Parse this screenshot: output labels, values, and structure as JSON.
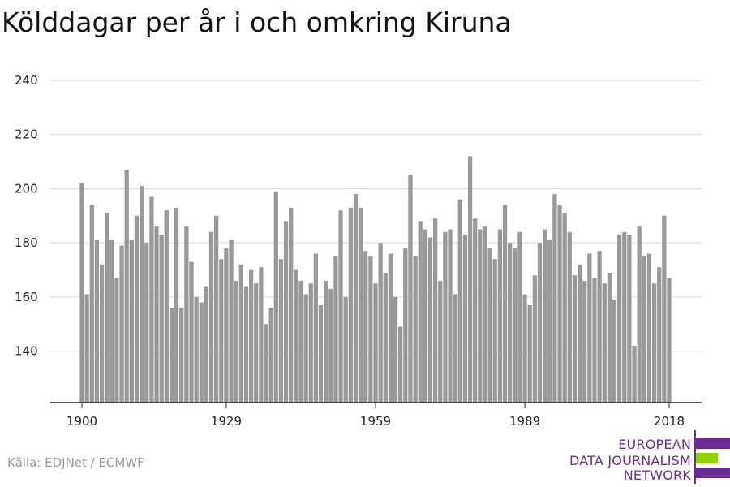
{
  "title": "Kölddagar per år i och omkring Kiruna",
  "source": "Källa: EDJNet / ECMWF",
  "logo": {
    "lines": [
      "EUROPEAN",
      "DATA JOURNALISM",
      "NETWORK"
    ],
    "colors": {
      "purple": "#6b2c91",
      "green": "#8fd400"
    }
  },
  "chart_data": {
    "type": "bar",
    "title": "Kölddagar per år i och omkring Kiruna",
    "xlabel": "",
    "ylabel": "",
    "ylim": [
      121,
      240
    ],
    "yticks": [
      140,
      160,
      180,
      200,
      220,
      240
    ],
    "xticks": [
      1900,
      1929,
      1959,
      1989,
      2018
    ],
    "grid": true,
    "bar_color": "#999999",
    "x": [
      1900,
      1901,
      1902,
      1903,
      1904,
      1905,
      1906,
      1907,
      1908,
      1909,
      1910,
      1911,
      1912,
      1913,
      1914,
      1915,
      1916,
      1917,
      1918,
      1919,
      1920,
      1921,
      1922,
      1923,
      1924,
      1925,
      1926,
      1927,
      1928,
      1929,
      1930,
      1931,
      1932,
      1933,
      1934,
      1935,
      1936,
      1937,
      1938,
      1939,
      1940,
      1941,
      1942,
      1943,
      1944,
      1945,
      1946,
      1947,
      1948,
      1949,
      1950,
      1951,
      1952,
      1953,
      1954,
      1955,
      1956,
      1957,
      1958,
      1959,
      1960,
      1961,
      1962,
      1963,
      1964,
      1965,
      1966,
      1967,
      1968,
      1969,
      1970,
      1971,
      1972,
      1973,
      1974,
      1975,
      1976,
      1977,
      1978,
      1979,
      1980,
      1981,
      1982,
      1983,
      1984,
      1985,
      1986,
      1987,
      1988,
      1989,
      1990,
      1991,
      1992,
      1993,
      1994,
      1995,
      1996,
      1997,
      1998,
      1999,
      2000,
      2001,
      2002,
      2003,
      2004,
      2005,
      2006,
      2007,
      2008,
      2009,
      2010,
      2011,
      2012,
      2013,
      2014,
      2015,
      2016,
      2017,
      2018
    ],
    "values": [
      202,
      161,
      194,
      181,
      172,
      191,
      181,
      167,
      179,
      207,
      181,
      190,
      201,
      180,
      197,
      186,
      183,
      192,
      156,
      193,
      156,
      186,
      173,
      160,
      158,
      164,
      184,
      190,
      174,
      178,
      181,
      166,
      172,
      164,
      170,
      165,
      171,
      150,
      156,
      199,
      174,
      188,
      193,
      170,
      166,
      161,
      165,
      176,
      157,
      166,
      163,
      175,
      192,
      160,
      193,
      198,
      193,
      177,
      175,
      165,
      180,
      169,
      176,
      160,
      149,
      178,
      205,
      175,
      188,
      185,
      182,
      189,
      166,
      184,
      185,
      161,
      196,
      183,
      212,
      189,
      185,
      186,
      178,
      174,
      185,
      194,
      180,
      178,
      184,
      161,
      157,
      168,
      180,
      185,
      181,
      198,
      194,
      191,
      184,
      168,
      172,
      166,
      176,
      167,
      177,
      165,
      169,
      159,
      183,
      184,
      183,
      142,
      186,
      175,
      176,
      165,
      171,
      190,
      167
    ]
  }
}
